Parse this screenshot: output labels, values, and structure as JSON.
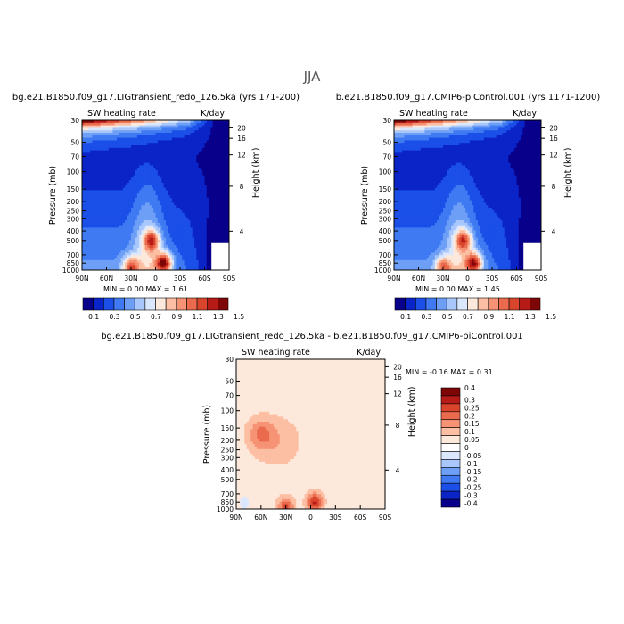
{
  "page": {
    "title": "JJA"
  },
  "colors": {
    "scale1": [
      "#08008a",
      "#0a24c8",
      "#1b4fe8",
      "#3f7af2",
      "#6e9ff6",
      "#a9c7fb",
      "#dbe7fd",
      "#fde8dc",
      "#fcbfa3",
      "#f69374",
      "#ea6a4e",
      "#d9442d",
      "#b71b18",
      "#7e0606"
    ],
    "scale2": [
      "#08008a",
      "#0a24c8",
      "#1b4fe8",
      "#3f7af2",
      "#6e9ff6",
      "#a9c7fb",
      "#dbe7fd",
      "#ffffff",
      "#fde8dc",
      "#fcbfa3",
      "#f69374",
      "#ea6a4e",
      "#d9442d",
      "#b71b18",
      "#7e0606"
    ]
  },
  "chart_data": [
    {
      "type": "heatmap",
      "title": "bg.e21.B1850.f09_g17.LIGtransient_redo_126.5ka (yrs 171-200)",
      "subtitle": "SW heating rate",
      "units": "K/day",
      "ylabel": "Pressure (mb)",
      "y2label": "Height (km)",
      "xticks": [
        "90N",
        "60N",
        "30N",
        "0",
        "30S",
        "60S",
        "90S"
      ],
      "yticks": [
        "30",
        "50",
        "70",
        "100",
        "150",
        "200",
        "250",
        "300",
        "400",
        "500",
        "700",
        "850",
        "1000"
      ],
      "y2ticks": [
        "20",
        "16",
        "12",
        "8",
        "4"
      ],
      "stats": "MIN =    0.00  MAX =    1.61",
      "levels": [
        "0.1",
        "0.3",
        "0.5",
        "0.7",
        "0.9",
        "1.1",
        "1.3",
        "1.5"
      ],
      "peaks": [
        {
          "lat": -10,
          "p": 850,
          "value": 1.61
        },
        {
          "lat": 5,
          "p": 500,
          "value": 1.2
        },
        {
          "lat": 30,
          "p": 930,
          "value": 1.1
        }
      ]
    },
    {
      "type": "heatmap",
      "title": "b.e21.B1850.f09_g17.CMIP6-piControl.001 (yrs 1171-1200)",
      "subtitle": "SW heating rate",
      "units": "K/day",
      "ylabel": "Pressure (mb)",
      "y2label": "Height (km)",
      "xticks": [
        "90N",
        "60N",
        "30N",
        "0",
        "30S",
        "60S",
        "90S"
      ],
      "yticks": [
        "30",
        "50",
        "70",
        "100",
        "150",
        "200",
        "250",
        "300",
        "400",
        "500",
        "700",
        "850",
        "1000"
      ],
      "y2ticks": [
        "20",
        "16",
        "12",
        "8",
        "4"
      ],
      "stats": "MIN =    0.00  MAX =    1.45",
      "levels": [
        "0.1",
        "0.3",
        "0.5",
        "0.7",
        "0.9",
        "1.1",
        "1.3",
        "1.5"
      ],
      "peaks": [
        {
          "lat": -8,
          "p": 850,
          "value": 1.45
        },
        {
          "lat": 5,
          "p": 500,
          "value": 1.1
        },
        {
          "lat": 30,
          "p": 930,
          "value": 1.0
        }
      ]
    },
    {
      "type": "heatmap",
      "title": "bg.e21.B1850.f09_g17.LIGtransient_redo_126.5ka - b.e21.B1850.f09_g17.CMIP6-piControl.001",
      "subtitle": "SW heating rate",
      "units": "K/day",
      "ylabel": "Pressure (mb)",
      "y2label": "Height (km)",
      "xticks": [
        "90N",
        "60N",
        "30N",
        "0",
        "30S",
        "60S",
        "90S"
      ],
      "yticks": [
        "30",
        "50",
        "70",
        "100",
        "150",
        "200",
        "250",
        "300",
        "400",
        "500",
        "700",
        "850",
        "1000"
      ],
      "y2ticks": [
        "20",
        "16",
        "12",
        "8",
        "4"
      ],
      "stats": "MIN =   -0.16  MAX =    0.31",
      "levels": [
        "0.4",
        "0.3",
        "0.25",
        "0.2",
        "0.15",
        "0.1",
        "0.05",
        "0",
        "-0.05",
        "-0.1",
        "-0.15",
        "-0.2",
        "-0.25",
        "-0.3",
        "-0.4"
      ],
      "peaks": [
        {
          "lat": -5,
          "p": 850,
          "value": 0.31
        },
        {
          "lat": 30,
          "p": 950,
          "value": 0.25
        },
        {
          "lat": 80,
          "p": 870,
          "value": -0.16
        }
      ]
    }
  ]
}
